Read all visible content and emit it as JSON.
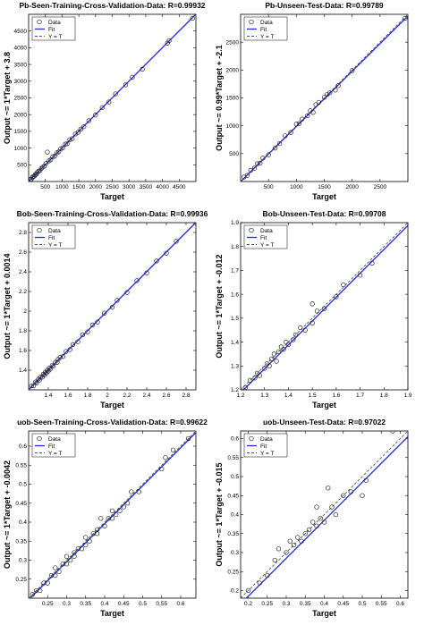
{
  "colors": {
    "fit": "#1f2bd6",
    "identity": "#555555",
    "data": "#222222",
    "axis": "#000000"
  },
  "legend": {
    "data": "Data",
    "fit": "Fit",
    "identity": "Y = T"
  },
  "chart_data": [
    {
      "type": "scatter",
      "title": "Pb-Seen-Training-Cross-Validation-Data: R=0.99932",
      "xlabel": "Target",
      "ylabel": "Output ~= 1*Target + 3.8",
      "xlim": [
        0,
        5000
      ],
      "ylim": [
        0,
        5000
      ],
      "xticks": [
        500,
        1000,
        1500,
        2000,
        2500,
        3000,
        3500,
        4000,
        4500
      ],
      "yticks": [
        500,
        1000,
        1500,
        2000,
        2500,
        3000,
        3500,
        4000,
        4500
      ],
      "fit": {
        "slope": 1,
        "intercept": 3.8
      },
      "legend_position": "top-left",
      "grid": false,
      "x": [
        50,
        80,
        110,
        140,
        170,
        200,
        230,
        260,
        300,
        340,
        380,
        420,
        470,
        520,
        560,
        610,
        660,
        720,
        780,
        850,
        900,
        960,
        1020,
        1100,
        1150,
        1230,
        1300,
        1400,
        1480,
        1560,
        1650,
        1800,
        2000,
        2200,
        2400,
        2600,
        2900,
        3100,
        3400,
        4150,
        4200,
        4900
      ],
      "y": [
        60,
        70,
        120,
        150,
        160,
        210,
        220,
        270,
        310,
        330,
        390,
        430,
        460,
        540,
        880,
        620,
        650,
        740,
        760,
        860,
        890,
        980,
        1010,
        1120,
        1130,
        1250,
        1280,
        1420,
        1470,
        1570,
        1640,
        1820,
        1990,
        2210,
        2380,
        2620,
        2890,
        3120,
        3360,
        4140,
        4210,
        4880
      ]
    },
    {
      "type": "scatter",
      "title": "Pb-Unseen-Test-Data: R=0.99789",
      "xlabel": "Target",
      "ylabel": "Output ~= 0.99*Target + -2.1",
      "xlim": [
        0,
        3000
      ],
      "ylim": [
        0,
        3000
      ],
      "xticks": [
        500,
        1000,
        1500,
        2000,
        2500
      ],
      "yticks": [
        500,
        1000,
        1500,
        2000,
        2500
      ],
      "fit": {
        "slope": 0.99,
        "intercept": -2.1
      },
      "legend_position": "top-left",
      "grid": false,
      "x": [
        60,
        120,
        180,
        250,
        300,
        350,
        400,
        500,
        620,
        700,
        800,
        900,
        1000,
        1050,
        1100,
        1200,
        1250,
        1300,
        1350,
        1400,
        1500,
        1550,
        1600,
        1700,
        1750,
        2000,
        2950
      ],
      "y": [
        80,
        110,
        200,
        240,
        320,
        330,
        420,
        480,
        600,
        680,
        820,
        880,
        1030,
        1040,
        1120,
        1180,
        1270,
        1240,
        1380,
        1420,
        1510,
        1560,
        1590,
        1640,
        1720,
        1990,
        2930
      ]
    },
    {
      "type": "scatter",
      "title": "Bob-Seen-Training-Cross-Validation-Data: R=0.99936",
      "xlabel": "Target",
      "ylabel": "Output ~= 1*Target + 0.0014",
      "xlim": [
        1.2,
        2.9
      ],
      "ylim": [
        1.2,
        2.9
      ],
      "xticks": [
        1.4,
        1.6,
        1.8,
        2,
        2.2,
        2.4,
        2.6,
        2.8
      ],
      "yticks": [
        1.4,
        1.6,
        1.8,
        2,
        2.2,
        2.4,
        2.6,
        2.8
      ],
      "fit": {
        "slope": 1,
        "intercept": 0.0014
      },
      "legend_position": "top-left",
      "grid": false,
      "x": [
        1.23,
        1.25,
        1.27,
        1.28,
        1.3,
        1.31,
        1.32,
        1.34,
        1.35,
        1.36,
        1.37,
        1.38,
        1.39,
        1.4,
        1.41,
        1.42,
        1.44,
        1.45,
        1.47,
        1.49,
        1.5,
        1.52,
        1.55,
        1.58,
        1.62,
        1.65,
        1.7,
        1.75,
        1.8,
        1.85,
        1.9,
        1.97,
        2.05,
        2.1,
        2.2,
        2.3,
        2.4,
        2.5,
        2.6,
        2.7,
        2.9
      ],
      "y": [
        1.24,
        1.24,
        1.28,
        1.27,
        1.31,
        1.3,
        1.33,
        1.33,
        1.36,
        1.35,
        1.38,
        1.37,
        1.4,
        1.39,
        1.42,
        1.41,
        1.45,
        1.44,
        1.48,
        1.48,
        1.51,
        1.53,
        1.54,
        1.59,
        1.61,
        1.66,
        1.69,
        1.76,
        1.79,
        1.86,
        1.89,
        1.98,
        2.04,
        2.11,
        2.19,
        2.31,
        2.39,
        2.51,
        2.59,
        2.71,
        2.9
      ]
    },
    {
      "type": "scatter",
      "title": "Bob-Unseen-Test-Data: R=0.99708",
      "xlabel": "Target",
      "ylabel": "Output ~= 1*Target + -0.012",
      "xlim": [
        1.2,
        1.9
      ],
      "ylim": [
        1.2,
        1.9
      ],
      "xticks": [
        1.2,
        1.3,
        1.4,
        1.5,
        1.6,
        1.7,
        1.8,
        1.9
      ],
      "yticks": [
        1.2,
        1.3,
        1.4,
        1.5,
        1.6,
        1.7,
        1.8,
        1.9
      ],
      "fit": {
        "slope": 1,
        "intercept": -0.012
      },
      "legend_position": "top-left",
      "grid": false,
      "x": [
        1.22,
        1.24,
        1.26,
        1.27,
        1.28,
        1.3,
        1.31,
        1.32,
        1.33,
        1.34,
        1.35,
        1.36,
        1.37,
        1.38,
        1.39,
        1.4,
        1.42,
        1.43,
        1.45,
        1.47,
        1.5,
        1.5,
        1.52,
        1.55,
        1.6,
        1.63,
        1.7,
        1.75,
        1.9
      ],
      "y": [
        1.21,
        1.24,
        1.25,
        1.27,
        1.26,
        1.29,
        1.31,
        1.3,
        1.33,
        1.35,
        1.32,
        1.36,
        1.38,
        1.37,
        1.4,
        1.39,
        1.41,
        1.43,
        1.46,
        1.45,
        1.56,
        1.48,
        1.53,
        1.54,
        1.59,
        1.64,
        1.68,
        1.73,
        1.91
      ]
    },
    {
      "type": "scatter",
      "title": "uob-Seen-Training-Cross-Validation-Data: R=0.99622",
      "xlabel": "Target",
      "ylabel": "Output ~= 1*Target + -0.0042",
      "xlim": [
        0.2,
        0.64
      ],
      "ylim": [
        0.2,
        0.64
      ],
      "xticks": [
        0.25,
        0.3,
        0.35,
        0.4,
        0.45,
        0.5,
        0.55,
        0.6
      ],
      "yticks": [
        0.25,
        0.3,
        0.35,
        0.4,
        0.45,
        0.5,
        0.55,
        0.6
      ],
      "fit": {
        "slope": 1,
        "intercept": -0.0042
      },
      "legend_position": "top-left",
      "grid": false,
      "x": [
        0.21,
        0.22,
        0.23,
        0.24,
        0.25,
        0.26,
        0.27,
        0.27,
        0.28,
        0.29,
        0.3,
        0.3,
        0.31,
        0.32,
        0.32,
        0.33,
        0.34,
        0.35,
        0.35,
        0.36,
        0.37,
        0.38,
        0.38,
        0.39,
        0.4,
        0.41,
        0.42,
        0.42,
        0.43,
        0.44,
        0.45,
        0.46,
        0.47,
        0.49,
        0.55,
        0.56,
        0.58,
        0.62
      ],
      "y": [
        0.21,
        0.22,
        0.22,
        0.24,
        0.24,
        0.26,
        0.26,
        0.28,
        0.27,
        0.29,
        0.29,
        0.31,
        0.3,
        0.32,
        0.31,
        0.33,
        0.33,
        0.34,
        0.36,
        0.35,
        0.37,
        0.38,
        0.37,
        0.41,
        0.39,
        0.41,
        0.41,
        0.43,
        0.42,
        0.43,
        0.44,
        0.45,
        0.48,
        0.48,
        0.54,
        0.57,
        0.59,
        0.62
      ]
    },
    {
      "type": "scatter",
      "title": "uob-Unseen-Test-Data: R=0.97022",
      "xlabel": "Target",
      "ylabel": "Output ~= 1*Target + -0.015",
      "xlim": [
        0.18,
        0.62
      ],
      "ylim": [
        0.18,
        0.62
      ],
      "xticks": [
        0.2,
        0.25,
        0.3,
        0.35,
        0.4,
        0.45,
        0.5,
        0.55,
        0.6
      ],
      "yticks": [
        0.2,
        0.25,
        0.3,
        0.35,
        0.4,
        0.45,
        0.5,
        0.55,
        0.6
      ],
      "fit": {
        "slope": 1,
        "intercept": -0.015
      },
      "legend_position": "top-left",
      "grid": false,
      "x": [
        0.2,
        0.23,
        0.25,
        0.27,
        0.28,
        0.3,
        0.31,
        0.32,
        0.33,
        0.34,
        0.35,
        0.36,
        0.37,
        0.38,
        0.38,
        0.39,
        0.4,
        0.41,
        0.42,
        0.43,
        0.45,
        0.47,
        0.5,
        0.51,
        0.58
      ],
      "y": [
        0.2,
        0.22,
        0.24,
        0.28,
        0.31,
        0.3,
        0.33,
        0.32,
        0.34,
        0.33,
        0.35,
        0.36,
        0.38,
        0.42,
        0.37,
        0.39,
        0.38,
        0.47,
        0.42,
        0.4,
        0.45,
        0.46,
        0.45,
        0.49,
        0.62
      ]
    }
  ]
}
